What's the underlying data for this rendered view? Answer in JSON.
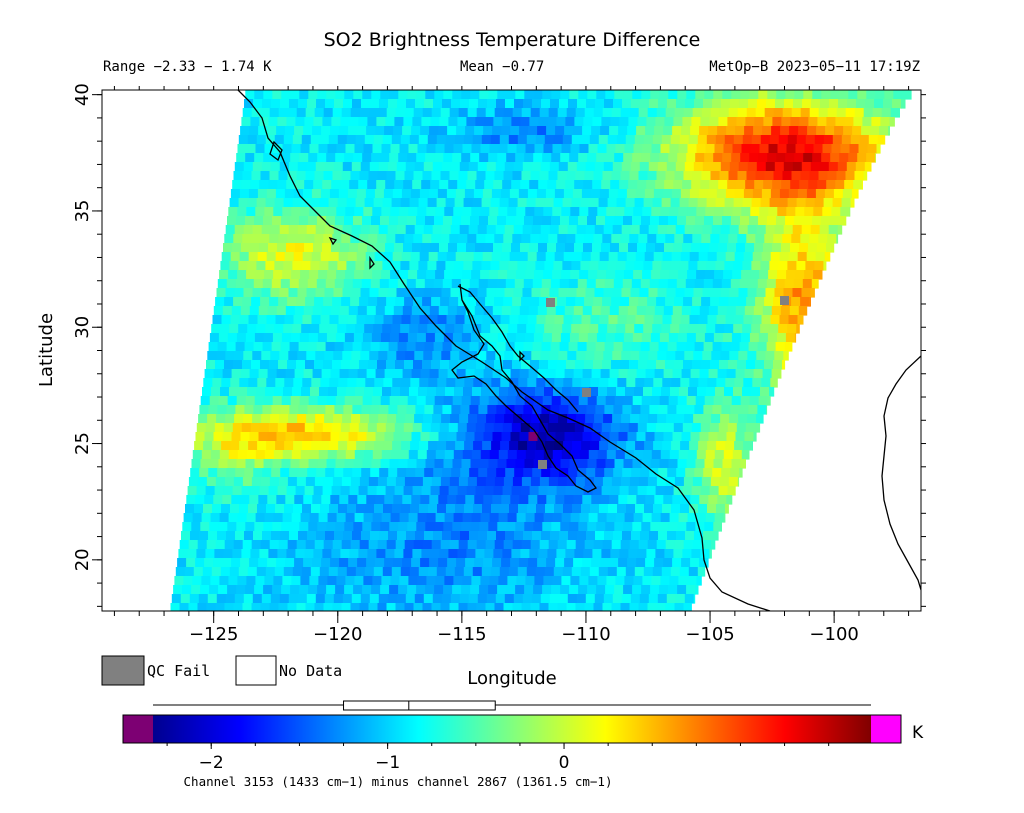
{
  "chart_data": {
    "type": "heatmap",
    "title": "SO2 Brightness Temperature Difference",
    "range_text": "Range −2.33 − 1.74 K",
    "mean_text": "Mean −0.77",
    "satellite_text": "MetOp−B 2023−05−11 17:19Z",
    "xlabel": "Longitude",
    "ylabel": "Latitude",
    "xlim": [
      -129.5,
      -96.5
    ],
    "ylim": [
      17.8,
      40.2
    ],
    "x_ticks": [
      -125,
      -120,
      -115,
      -110,
      -105,
      -100
    ],
    "x_tick_labels": [
      "−125",
      "−120",
      "−115",
      "−110",
      "−105",
      "−100"
    ],
    "y_ticks": [
      20,
      25,
      30,
      35,
      40
    ],
    "y_tick_labels": [
      "20",
      "25",
      "30",
      "35",
      "40"
    ],
    "value_range": [
      -2.33,
      1.74
    ],
    "mean": -0.77,
    "features": [
      {
        "name": "low-bdt-plume-baja",
        "lon": -112,
        "lat": 25.5,
        "value": -2.1
      },
      {
        "name": "high-bdt-band-west",
        "lon": -125,
        "lat": 25.2,
        "value": 0.6
      },
      {
        "name": "high-bdt-northeast",
        "lon": -102,
        "lat": 38.5,
        "value": 1.5
      }
    ],
    "colorbar": {
      "min": -2.33,
      "max": 1.74,
      "ticks": [
        -2,
        -1,
        0
      ],
      "tick_labels": [
        "−2",
        "−1",
        "0"
      ],
      "unit": "K",
      "boxplot": {
        "min": -2.33,
        "q1": -1.25,
        "median": -0.88,
        "q3": -0.39,
        "max": 1.74
      }
    },
    "legend": [
      {
        "label": "QC Fail",
        "color": "#808080"
      },
      {
        "label": "No Data",
        "color": "#ffffff"
      }
    ],
    "footnote": "Channel 3153 (1433 cm−1) minus channel 2867 (1361.5 cm−1)"
  }
}
